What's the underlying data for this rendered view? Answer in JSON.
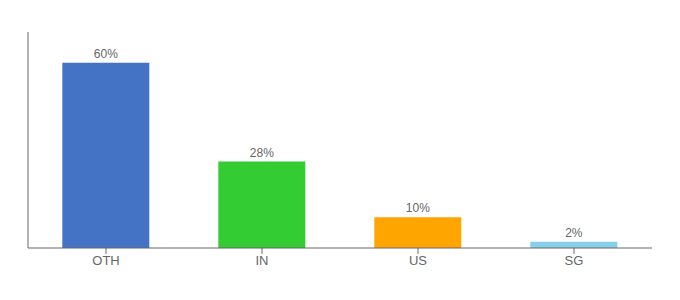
{
  "chart_data": {
    "type": "bar",
    "categories": [
      "OTH",
      "IN",
      "US",
      "SG"
    ],
    "values": [
      60,
      28,
      10,
      2
    ],
    "value_labels": [
      "60%",
      "28%",
      "10%",
      "2%"
    ],
    "colors": [
      "#4472C4",
      "#33CC33",
      "#FFA500",
      "#87CEEB"
    ],
    "ylim": [
      0,
      70
    ],
    "data_labels": true,
    "grid": false,
    "tick_labels": "x"
  }
}
